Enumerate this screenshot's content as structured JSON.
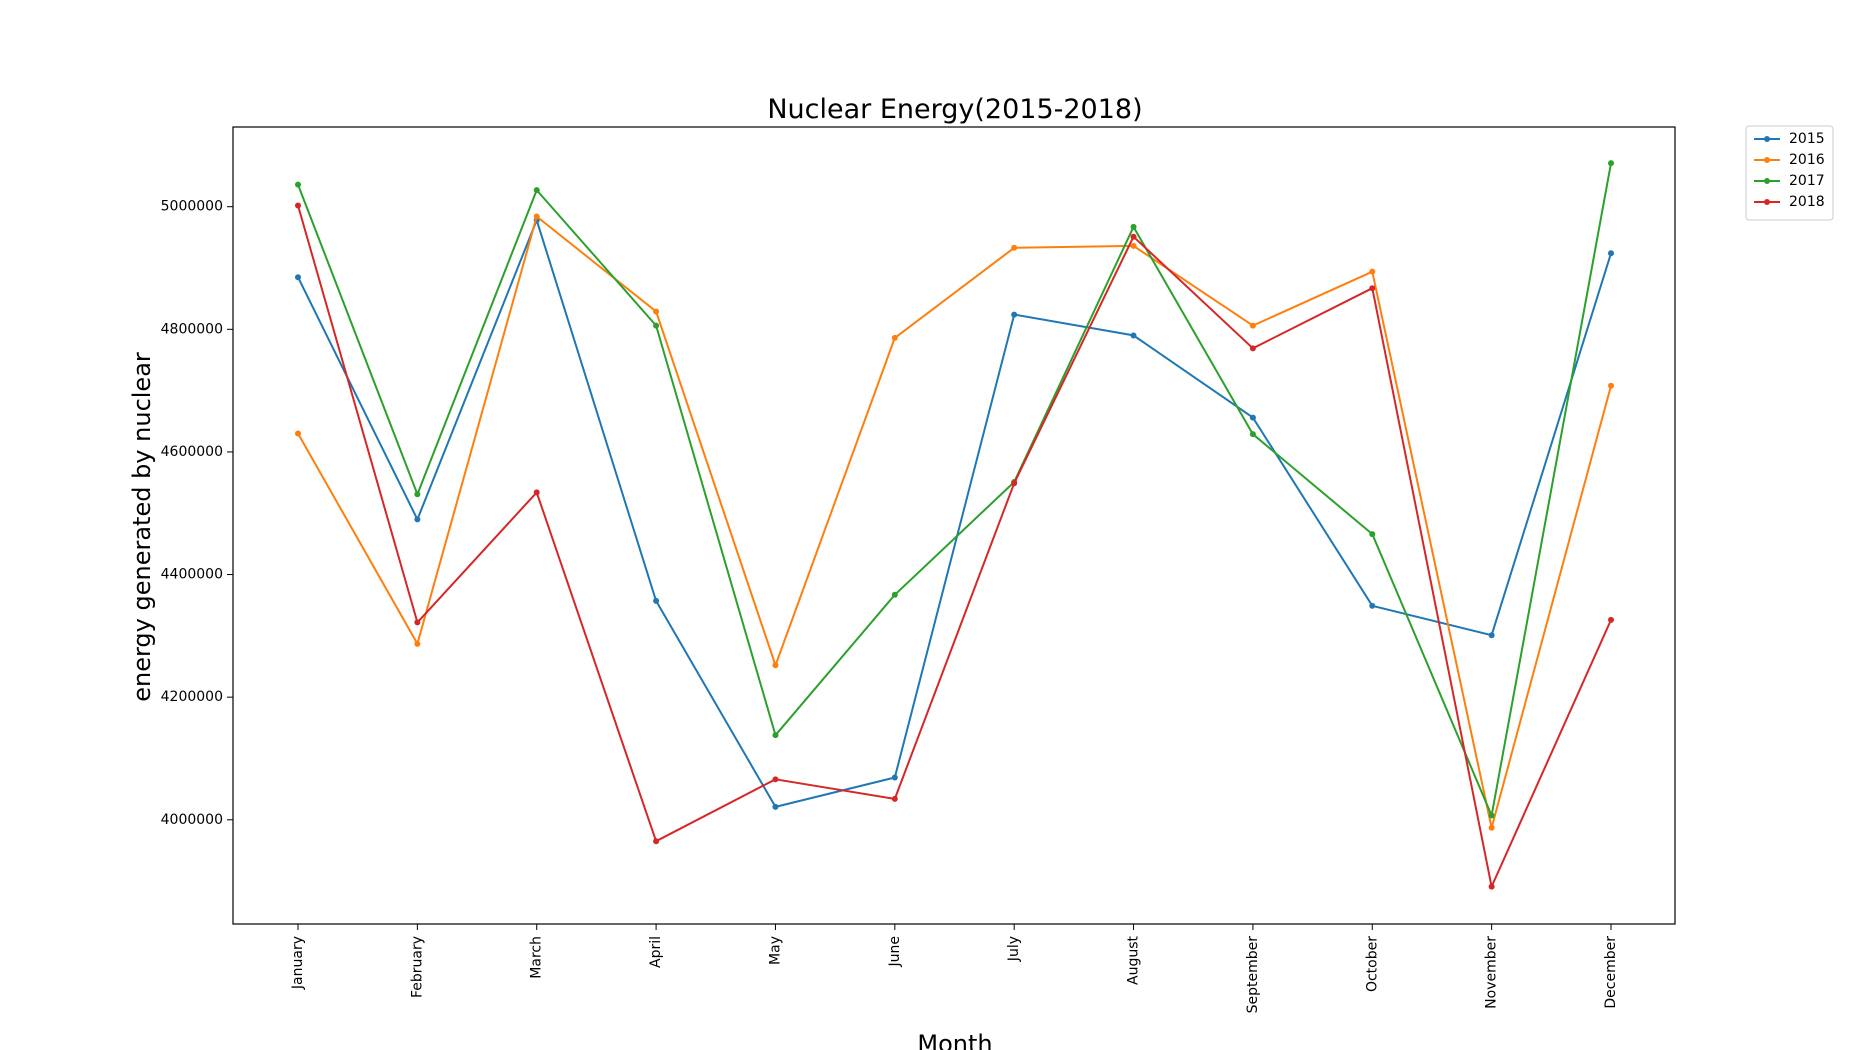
{
  "chart_data": {
    "type": "line",
    "title": "Nuclear Energy(2015-2018)",
    "xlabel": "Month",
    "ylabel": "energy generated by nuclear",
    "categories": [
      "January",
      "February",
      "March",
      "April",
      "May",
      "June",
      "July",
      "August",
      "September",
      "October",
      "November",
      "December"
    ],
    "ylim": [
      3830000,
      5130000
    ],
    "yticks": [
      4000000,
      4200000,
      4400000,
      4600000,
      4800000,
      5000000
    ],
    "ytick_labels": [
      "4000000",
      "4200000",
      "4400000",
      "4600000",
      "4800000",
      "5000000"
    ],
    "grid": false,
    "legend_position": "upper right, outside plot",
    "series": [
      {
        "name": "2015",
        "color": "#1f77b4",
        "values": [
          4885000,
          4490000,
          4978000,
          4357000,
          4021000,
          4069000,
          4824000,
          4790000,
          4656000,
          4349000,
          4301000,
          4924000
        ]
      },
      {
        "name": "2016",
        "color": "#ff7f0e",
        "values": [
          4630000,
          4287000,
          4984000,
          4829000,
          4252000,
          4786000,
          4933000,
          4936000,
          4806000,
          4894000,
          3987000,
          4708000
        ]
      },
      {
        "name": "2017",
        "color": "#2ca02c",
        "values": [
          5036000,
          4531000,
          5027000,
          4806000,
          4138000,
          4367000,
          4551000,
          4967000,
          4629000,
          4466000,
          4007000,
          5071000
        ]
      },
      {
        "name": "2018",
        "color": "#d62728",
        "values": [
          5002000,
          4322000,
          4534000,
          3965000,
          4066000,
          4034000,
          4549000,
          4951000,
          4769000,
          4867000,
          3891000,
          4326000
        ]
      }
    ]
  }
}
